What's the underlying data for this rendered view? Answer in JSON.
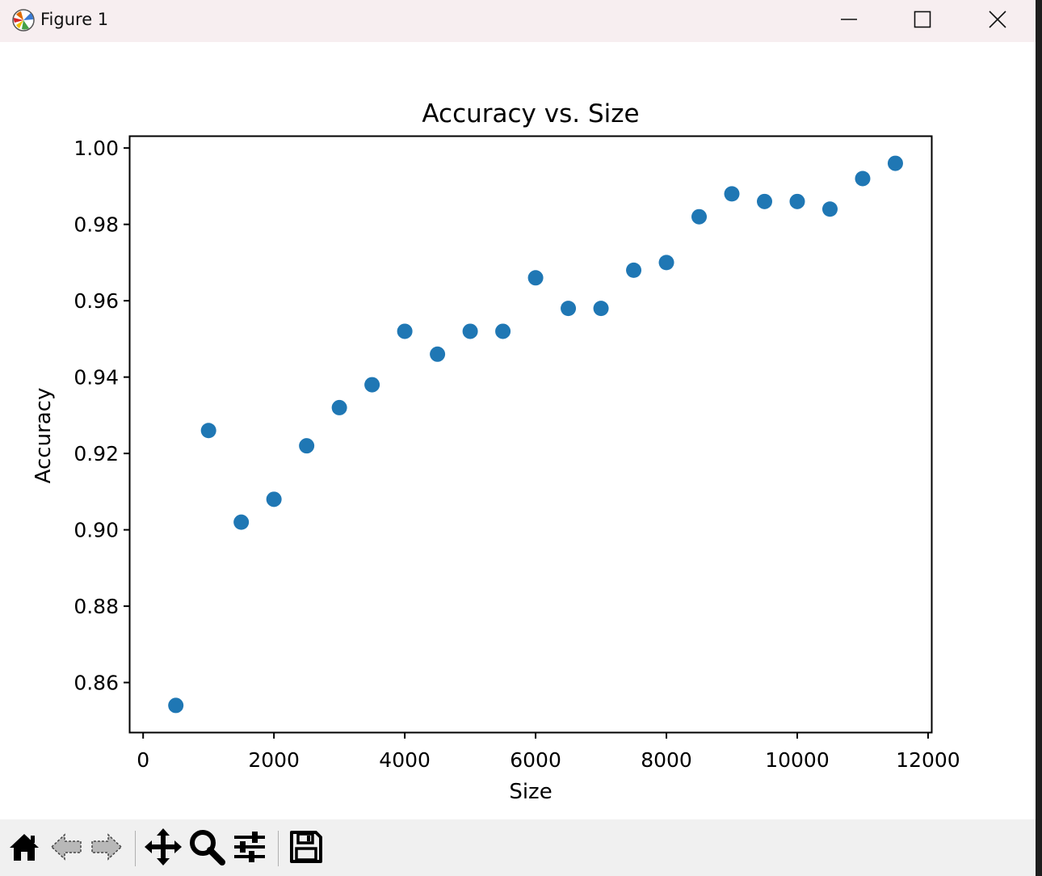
{
  "window": {
    "title": "Figure 1"
  },
  "colors": {
    "marker": "#1f77b4",
    "titlebar": "#f7eef0",
    "toolbar": "#f0f0f0"
  },
  "toolbar": {
    "icons": [
      "home-icon",
      "back-arrow-icon",
      "forward-arrow-icon",
      "pan-icon",
      "zoom-icon",
      "configure-subplots-icon",
      "save-icon"
    ]
  },
  "chart_data": {
    "type": "scatter",
    "title": "Accuracy vs. Size",
    "xlabel": "Size",
    "ylabel": "Accuracy",
    "xlim": [
      -200,
      12050
    ],
    "ylim": [
      0.847,
      1.003
    ],
    "xticks": [
      0,
      2000,
      4000,
      6000,
      8000,
      10000,
      12000
    ],
    "xtick_labels": [
      "0",
      "2000",
      "4000",
      "6000",
      "8000",
      "10000",
      "12000"
    ],
    "yticks": [
      0.86,
      0.88,
      0.9,
      0.92,
      0.94,
      0.96,
      0.98,
      1.0
    ],
    "ytick_labels": [
      "0.86",
      "0.88",
      "0.90",
      "0.92",
      "0.94",
      "0.96",
      "0.98",
      "1.00"
    ],
    "grid": false,
    "legend": "none",
    "x": [
      500,
      1000,
      1500,
      2000,
      2500,
      3000,
      3500,
      4000,
      4500,
      5000,
      5500,
      6000,
      6500,
      7000,
      7500,
      8000,
      8500,
      9000,
      9500,
      10000,
      10500,
      11000,
      11500
    ],
    "y": [
      0.854,
      0.926,
      0.902,
      0.908,
      0.922,
      0.932,
      0.938,
      0.952,
      0.946,
      0.952,
      0.952,
      0.966,
      0.958,
      0.958,
      0.968,
      0.97,
      0.982,
      0.988,
      0.986,
      0.986,
      0.984,
      0.992,
      0.996
    ]
  }
}
